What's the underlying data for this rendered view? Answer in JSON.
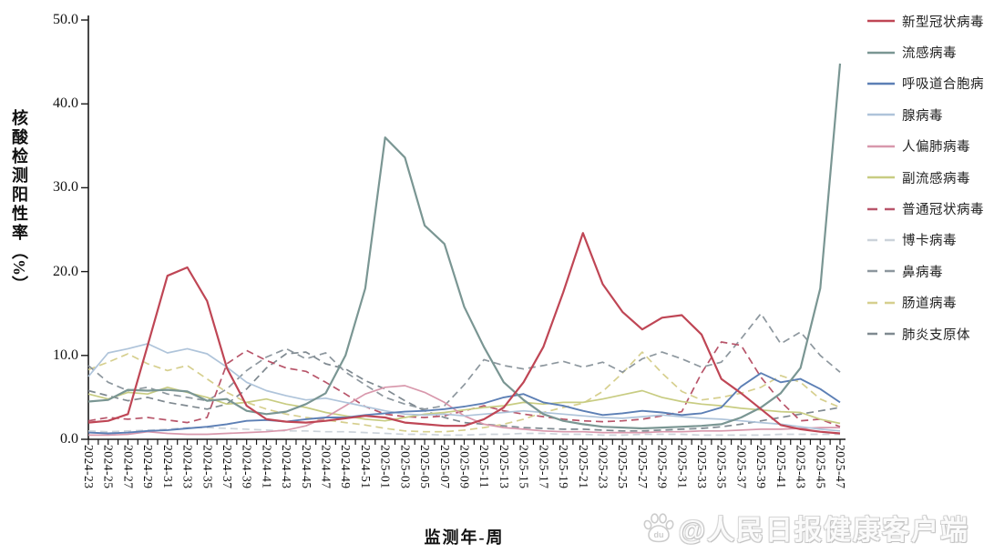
{
  "y_axis": {
    "title": "核酸检测阳性率",
    "unit": "（%）",
    "ticks": [
      "0.0",
      "10.0",
      "20.0",
      "30.0",
      "40.0",
      "50.0"
    ],
    "min": 0,
    "max": 50
  },
  "x_axis": {
    "title": "监测年-周"
  },
  "watermark": {
    "icon": "paw-icon",
    "icon_letters": "du",
    "text": "@人民日报健康客户端"
  },
  "chart_data": {
    "type": "line",
    "title": "",
    "xlabel": "监测年-周",
    "ylabel": "核酸检测阳性率（%）",
    "ylim": [
      0,
      50
    ],
    "grid": false,
    "legend_position": "right",
    "categories": [
      "2024-23",
      "2024-25",
      "2024-27",
      "2024-29",
      "2024-31",
      "2024-33",
      "2024-35",
      "2024-37",
      "2024-39",
      "2024-41",
      "2024-43",
      "2024-45",
      "2024-47",
      "2024-49",
      "2024-51",
      "2025-01",
      "2025-03",
      "2025-05",
      "2025-07",
      "2025-09",
      "2025-11",
      "2025-13",
      "2025-15",
      "2025-17",
      "2025-19",
      "2025-21",
      "2025-23",
      "2025-25",
      "2025-27",
      "2025-29",
      "2025-31",
      "2025-33",
      "2025-35",
      "2025-37",
      "2025-39",
      "2025-41",
      "2025-43",
      "2025-45",
      "2025-47"
    ],
    "series": [
      {
        "name": "新型冠状病毒",
        "color": "#bf4655",
        "dash": false,
        "width": 2.2,
        "values": [
          2.0,
          2.2,
          3.0,
          11.2,
          19.5,
          20.5,
          16.5,
          8.5,
          4.0,
          2.4,
          2.1,
          2.0,
          2.2,
          2.5,
          2.8,
          2.6,
          2.0,
          1.8,
          1.6,
          1.6,
          2.4,
          3.8,
          6.8,
          11.0,
          17.5,
          24.6,
          18.5,
          15.2,
          13.1,
          14.5,
          14.8,
          12.5,
          7.2,
          5.5,
          3.6,
          1.7,
          1.2,
          0.9,
          0.7
        ]
      },
      {
        "name": "流感病毒",
        "color": "#7a9693",
        "dash": false,
        "width": 2.2,
        "values": [
          4.5,
          4.7,
          5.9,
          5.8,
          5.9,
          5.7,
          4.6,
          4.8,
          3.4,
          3.0,
          3.3,
          4.2,
          5.5,
          10.0,
          18.0,
          36.0,
          33.6,
          25.5,
          23.3,
          15.8,
          11.0,
          6.8,
          4.7,
          3.0,
          2.2,
          1.8,
          1.5,
          1.4,
          1.3,
          1.4,
          1.5,
          1.6,
          1.8,
          2.6,
          3.8,
          5.5,
          8.5,
          18.0,
          44.8
        ]
      },
      {
        "name": "呼吸道合胞病毒",
        "color": "#5c7fb5",
        "dash": false,
        "width": 1.9,
        "values": [
          0.8,
          0.7,
          0.8,
          1.0,
          1.1,
          1.3,
          1.5,
          1.8,
          2.2,
          2.3,
          2.1,
          2.4,
          2.6,
          2.6,
          2.9,
          3.1,
          3.3,
          3.4,
          3.6,
          3.9,
          4.3,
          5.0,
          5.4,
          4.4,
          4.0,
          3.4,
          2.9,
          3.1,
          3.4,
          3.2,
          2.9,
          3.1,
          3.8,
          6.3,
          7.9,
          6.8,
          7.2,
          6.0,
          4.4
        ]
      },
      {
        "name": "腺病毒",
        "color": "#afc4da",
        "dash": false,
        "width": 1.7,
        "values": [
          7.5,
          10.3,
          10.8,
          11.4,
          10.3,
          10.8,
          10.2,
          8.6,
          6.8,
          5.8,
          5.2,
          4.7,
          4.9,
          4.4,
          3.9,
          3.4,
          3.0,
          2.9,
          3.0,
          2.8,
          3.0,
          3.2,
          3.4,
          3.2,
          3.0,
          2.8,
          2.6,
          2.5,
          2.7,
          2.9,
          2.7,
          2.5,
          2.4,
          2.2,
          2.0,
          1.8,
          1.5,
          1.2,
          1.0
        ]
      },
      {
        "name": "人偏肺病毒",
        "color": "#d898ac",
        "dash": false,
        "width": 1.7,
        "values": [
          0.5,
          0.5,
          0.6,
          0.9,
          0.7,
          0.6,
          0.6,
          0.7,
          0.8,
          0.9,
          1.1,
          1.6,
          2.6,
          4.0,
          5.4,
          6.2,
          6.4,
          5.6,
          4.4,
          2.8,
          1.8,
          1.4,
          1.2,
          1.0,
          0.9,
          0.9,
          0.8,
          0.8,
          0.8,
          0.9,
          0.9,
          1.0,
          1.0,
          1.1,
          1.2,
          1.2,
          1.3,
          1.4,
          1.4
        ]
      },
      {
        "name": "副流感病毒",
        "color": "#c8cc82",
        "dash": false,
        "width": 1.7,
        "values": [
          5.4,
          4.8,
          5.6,
          5.4,
          6.2,
          5.6,
          5.0,
          4.2,
          4.4,
          4.8,
          4.2,
          3.8,
          3.2,
          2.8,
          2.4,
          2.2,
          2.6,
          3.0,
          3.2,
          3.5,
          3.8,
          4.0,
          4.4,
          4.2,
          4.4,
          4.4,
          4.8,
          5.3,
          5.8,
          5.0,
          4.5,
          4.2,
          4.0,
          3.7,
          3.5,
          3.3,
          3.2,
          2.4,
          1.9
        ]
      },
      {
        "name": "普通冠状病毒",
        "color": "#b8556a",
        "dash": true,
        "width": 1.7,
        "values": [
          2.2,
          2.6,
          2.4,
          2.6,
          2.3,
          2.0,
          2.6,
          9.0,
          10.6,
          9.4,
          8.5,
          8.1,
          6.8,
          5.4,
          3.9,
          3.0,
          2.7,
          2.6,
          2.8,
          3.4,
          4.0,
          3.4,
          3.0,
          2.7,
          2.4,
          2.2,
          2.1,
          2.2,
          2.4,
          2.8,
          3.3,
          7.9,
          11.6,
          11.2,
          7.4,
          4.5,
          2.2,
          2.4,
          1.5
        ]
      },
      {
        "name": "博卡病毒",
        "color": "#ccd3da",
        "dash": true,
        "width": 1.7,
        "values": [
          1.0,
          0.9,
          1.0,
          1.1,
          1.2,
          1.4,
          1.4,
          1.3,
          1.2,
          1.1,
          1.0,
          1.0,
          0.9,
          0.9,
          0.8,
          0.7,
          0.6,
          0.6,
          0.5,
          0.5,
          0.6,
          0.6,
          0.7,
          0.7,
          0.6,
          0.6,
          0.5,
          0.5,
          0.6,
          0.6,
          0.6,
          0.5,
          0.5,
          0.5,
          0.5,
          0.6,
          0.6,
          0.6,
          0.6
        ]
      },
      {
        "name": "鼻病毒",
        "color": "#8d979e",
        "dash": true,
        "width": 1.7,
        "values": [
          8.8,
          6.8,
          5.8,
          6.2,
          5.4,
          5.0,
          4.6,
          6.0,
          8.2,
          9.8,
          10.8,
          9.6,
          10.3,
          8.0,
          6.5,
          5.0,
          4.2,
          3.6,
          4.0,
          6.5,
          9.5,
          8.8,
          8.4,
          8.8,
          9.3,
          8.6,
          9.2,
          8.0,
          9.6,
          10.4,
          9.6,
          8.6,
          9.2,
          12.0,
          15.0,
          11.4,
          12.8,
          10.0,
          8.0
        ]
      },
      {
        "name": "肠道病毒",
        "color": "#d6cf8e",
        "dash": true,
        "width": 1.7,
        "values": [
          8.3,
          9.2,
          10.2,
          9.0,
          8.2,
          8.8,
          7.2,
          5.6,
          4.4,
          3.6,
          3.0,
          2.6,
          2.3,
          2.0,
          1.7,
          1.3,
          1.0,
          0.9,
          0.9,
          1.1,
          1.4,
          1.8,
          2.4,
          3.2,
          3.8,
          4.3,
          5.7,
          7.9,
          10.4,
          7.9,
          5.7,
          4.7,
          5.0,
          5.5,
          6.2,
          7.6,
          6.8,
          4.8,
          3.8
        ]
      },
      {
        "name": "肺炎支原体",
        "color": "#7f8990",
        "dash": true,
        "width": 1.7,
        "values": [
          5.8,
          5.2,
          4.6,
          5.0,
          4.4,
          4.0,
          3.6,
          4.2,
          6.0,
          8.5,
          10.2,
          10.4,
          9.0,
          8.4,
          7.0,
          6.0,
          4.6,
          3.4,
          2.6,
          2.0,
          1.8,
          1.6,
          1.4,
          1.3,
          1.2,
          1.2,
          1.1,
          1.0,
          1.0,
          1.1,
          1.2,
          1.3,
          1.5,
          1.8,
          2.2,
          2.6,
          3.0,
          3.4,
          3.8
        ]
      }
    ]
  }
}
